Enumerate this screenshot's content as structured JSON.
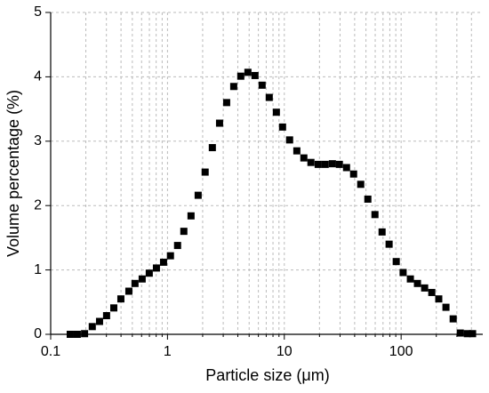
{
  "chart_data": {
    "type": "scatter",
    "x_label": "Particle size (μm)",
    "y_label": "Volume percentage (%)",
    "x_scale": "log",
    "grid": true,
    "color": "#000000",
    "xlim": [
      0.1,
      500
    ],
    "ylim": [
      0,
      5
    ],
    "xticks": [
      0.1,
      1,
      10,
      100
    ],
    "x_minor_ticks": [
      0.2,
      0.3,
      0.4,
      0.5,
      0.6,
      0.7,
      0.8,
      0.9,
      2,
      3,
      4,
      5,
      6,
      7,
      8,
      9,
      20,
      30,
      40,
      50,
      60,
      70,
      80,
      90,
      200,
      300,
      400
    ],
    "yticks": [
      0,
      1,
      2,
      3,
      4,
      5
    ],
    "x": [
      0.147,
      0.169,
      0.195,
      0.227,
      0.262,
      0.301,
      0.347,
      0.399,
      0.467,
      0.527,
      0.607,
      0.698,
      0.804,
      0.925,
      1.06,
      1.22,
      1.38,
      1.59,
      1.83,
      2.1,
      2.42,
      2.79,
      3.21,
      3.69,
      4.24,
      4.88,
      5.61,
      6.46,
      7.43,
      8.55,
      9.66,
      11.1,
      12.8,
      14.7,
      16.9,
      19.5,
      22.4,
      25.8,
      29.6,
      34.1,
      39.2,
      45.1,
      51.9,
      59.7,
      68.7,
      78.9,
      90.8,
      104,
      120,
      138,
      159,
      183,
      210,
      242,
      279,
      321,
      369,
      409
    ],
    "values": [
      0,
      0,
      0.01,
      0.12,
      0.2,
      0.29,
      0.41,
      0.55,
      0.67,
      0.79,
      0.86,
      0.95,
      1.03,
      1.12,
      1.22,
      1.38,
      1.6,
      1.84,
      2.16,
      2.52,
      2.9,
      3.28,
      3.6,
      3.85,
      4.01,
      4.07,
      4.02,
      3.87,
      3.68,
      3.45,
      3.22,
      3.02,
      2.85,
      2.74,
      2.67,
      2.64,
      2.64,
      2.65,
      2.64,
      2.59,
      2.49,
      2.33,
      2.1,
      1.86,
      1.59,
      1.4,
      1.13,
      0.96,
      0.86,
      0.79,
      0.72,
      0.65,
      0.55,
      0.42,
      0.24,
      0.02,
      0.01,
      0.01
    ]
  }
}
